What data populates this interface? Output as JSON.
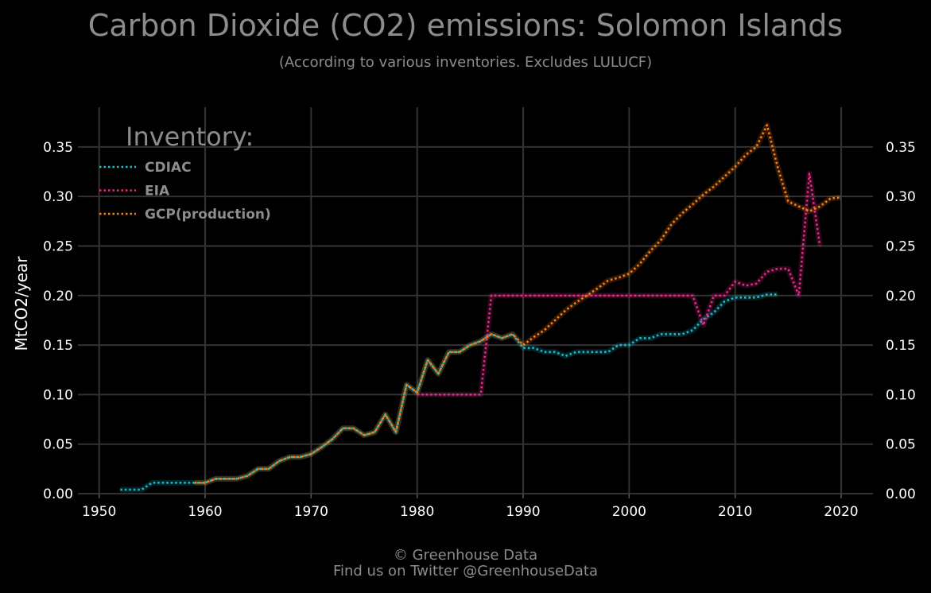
{
  "title": "Carbon Dioxide (CO2) emissions: Solomon Islands",
  "subtitle": "(According to various inventories. Excludes LULUCF)",
  "footer": {
    "line1": "© Greenhouse Data",
    "line2": "Find us on Twitter @GreenhouseData"
  },
  "chart_data": {
    "type": "line",
    "ylabel": "MtCO2/year",
    "xlabel": "",
    "xlim": [
      1948,
      2023
    ],
    "ylim": [
      0,
      0.39
    ],
    "x_ticks": [
      1950,
      1960,
      1970,
      1980,
      1990,
      2000,
      2010,
      2020
    ],
    "y_ticks": [
      "0.00",
      "0.05",
      "0.10",
      "0.15",
      "0.20",
      "0.25",
      "0.30",
      "0.35"
    ],
    "grid": true,
    "background": "#000000",
    "legend": {
      "title": "Inventory:",
      "placement": "top-left"
    },
    "series": [
      {
        "name": "CDIAC",
        "color": "#17becf",
        "x": [
          1952,
          1953,
          1954,
          1955,
          1956,
          1957,
          1958,
          1959,
          1960,
          1961,
          1962,
          1963,
          1964,
          1965,
          1966,
          1967,
          1968,
          1969,
          1970,
          1971,
          1972,
          1973,
          1974,
          1975,
          1976,
          1977,
          1978,
          1979,
          1980,
          1981,
          1982,
          1983,
          1984,
          1985,
          1986,
          1987,
          1988,
          1989,
          1990,
          1991,
          1992,
          1993,
          1994,
          1995,
          1996,
          1997,
          1998,
          1999,
          2000,
          2001,
          2002,
          2003,
          2004,
          2005,
          2006,
          2007,
          2008,
          2009,
          2010,
          2011,
          2012,
          2013,
          2014
        ],
        "y": [
          0.004,
          0.004,
          0.004,
          0.011,
          0.011,
          0.011,
          0.011,
          0.011,
          0.011,
          0.015,
          0.015,
          0.015,
          0.018,
          0.025,
          0.025,
          0.033,
          0.037,
          0.037,
          0.04,
          0.047,
          0.055,
          0.066,
          0.066,
          0.059,
          0.062,
          0.08,
          0.062,
          0.11,
          0.102,
          0.135,
          0.121,
          0.143,
          0.143,
          0.15,
          0.154,
          0.161,
          0.157,
          0.161,
          0.147,
          0.147,
          0.143,
          0.143,
          0.139,
          0.143,
          0.143,
          0.143,
          0.143,
          0.15,
          0.15,
          0.157,
          0.157,
          0.161,
          0.161,
          0.161,
          0.165,
          0.176,
          0.183,
          0.194,
          0.198,
          0.198,
          0.198,
          0.201,
          0.201
        ]
      },
      {
        "name": "EIA",
        "color": "#e7298a",
        "x": [
          1980,
          1981,
          1982,
          1983,
          1984,
          1985,
          1986,
          1987,
          1988,
          1989,
          1990,
          1991,
          1992,
          1993,
          1994,
          1995,
          1996,
          1997,
          1998,
          1999,
          2000,
          2001,
          2002,
          2003,
          2004,
          2005,
          2006,
          2007,
          2008,
          2009,
          2010,
          2011,
          2012,
          2013,
          2014,
          2015,
          2016,
          2017,
          2018
        ],
        "y": [
          0.1,
          0.1,
          0.1,
          0.1,
          0.1,
          0.1,
          0.1,
          0.2,
          0.2,
          0.2,
          0.2,
          0.2,
          0.2,
          0.2,
          0.2,
          0.2,
          0.2,
          0.2,
          0.2,
          0.2,
          0.2,
          0.2,
          0.2,
          0.2,
          0.2,
          0.2,
          0.2,
          0.17,
          0.2,
          0.2,
          0.214,
          0.21,
          0.212,
          0.224,
          0.227,
          0.227,
          0.2,
          0.323,
          0.25
        ]
      },
      {
        "name": "GCP(production)",
        "color": "#ff7f0e",
        "x": [
          1959,
          1960,
          1961,
          1962,
          1963,
          1964,
          1965,
          1966,
          1967,
          1968,
          1969,
          1970,
          1971,
          1972,
          1973,
          1974,
          1975,
          1976,
          1977,
          1978,
          1979,
          1980,
          1981,
          1982,
          1983,
          1984,
          1985,
          1986,
          1987,
          1988,
          1989,
          1990,
          1991,
          1992,
          1993,
          1994,
          1995,
          1996,
          1997,
          1998,
          1999,
          2000,
          2001,
          2002,
          2003,
          2004,
          2005,
          2006,
          2007,
          2008,
          2009,
          2010,
          2011,
          2012,
          2013,
          2014,
          2015,
          2016,
          2017,
          2018,
          2019,
          2020
        ],
        "y": [
          0.011,
          0.011,
          0.015,
          0.015,
          0.015,
          0.018,
          0.025,
          0.025,
          0.033,
          0.037,
          0.037,
          0.04,
          0.047,
          0.055,
          0.066,
          0.066,
          0.059,
          0.062,
          0.08,
          0.062,
          0.11,
          0.102,
          0.135,
          0.121,
          0.143,
          0.143,
          0.15,
          0.154,
          0.161,
          0.157,
          0.161,
          0.15,
          0.158,
          0.165,
          0.175,
          0.185,
          0.193,
          0.2,
          0.207,
          0.215,
          0.218,
          0.222,
          0.232,
          0.245,
          0.256,
          0.272,
          0.283,
          0.292,
          0.302,
          0.31,
          0.32,
          0.33,
          0.342,
          0.35,
          0.372,
          0.33,
          0.295,
          0.29,
          0.285,
          0.29,
          0.298,
          0.299
        ]
      }
    ]
  }
}
